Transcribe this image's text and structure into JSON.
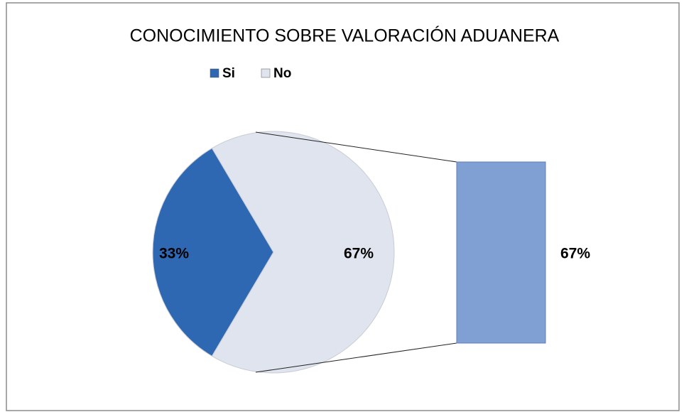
{
  "chart_data": {
    "type": "pie-of-bar",
    "title": "CONOCIMIENTO SOBRE VALORACIÓN ADUANERA",
    "categories": [
      "Si",
      "No"
    ],
    "values": [
      33,
      67
    ],
    "value_labels": [
      "33%",
      "67%"
    ],
    "colors": [
      "#2f68b2",
      "#dfe4ee"
    ],
    "bar_color": "#809fd2",
    "legend": "top"
  }
}
